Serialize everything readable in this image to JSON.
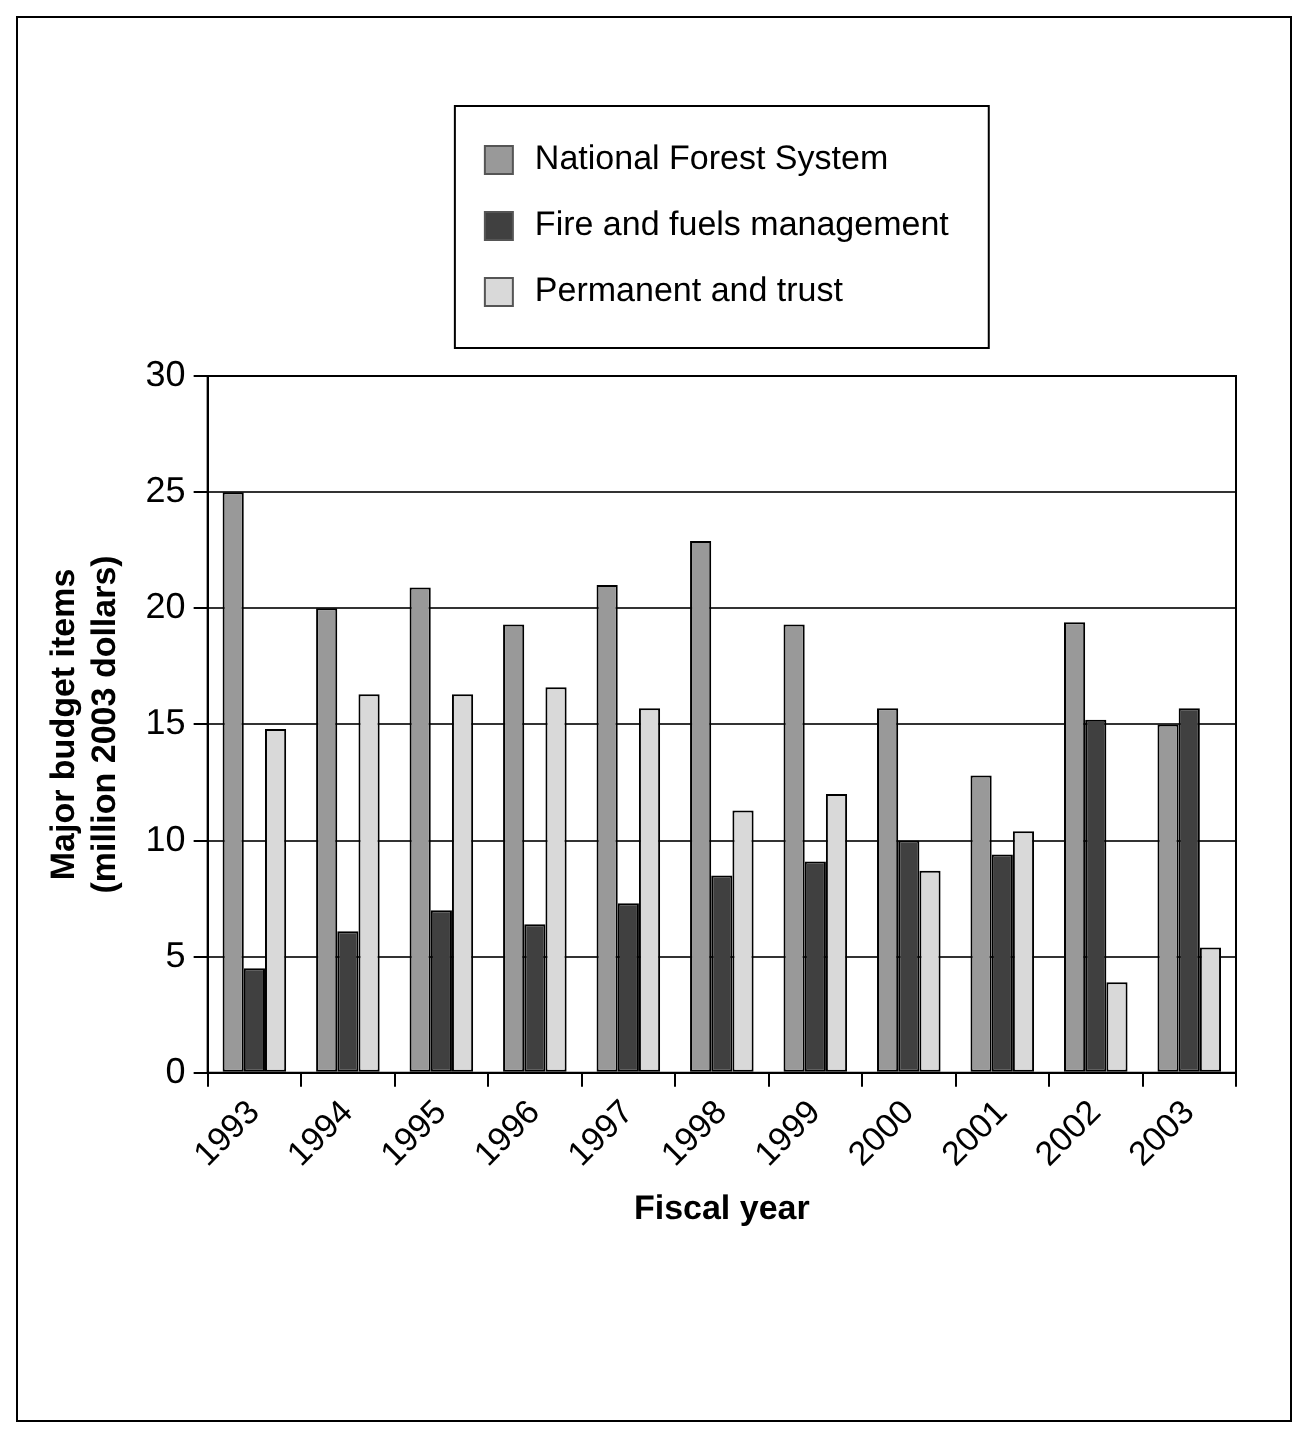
{
  "chart_data": {
    "type": "bar",
    "xlabel": "Fiscal year",
    "ylabel": "Major budget items\n(million 2003 dollars)",
    "categories": [
      "1993",
      "1994",
      "1995",
      "1996",
      "1997",
      "1998",
      "1999",
      "2000",
      "2001",
      "2002",
      "2003"
    ],
    "series": [
      {
        "name": "National Forest System",
        "color": "#999999",
        "values": [
          25.0,
          20.0,
          20.9,
          19.3,
          21.0,
          22.9,
          19.3,
          15.7,
          12.8,
          19.4,
          15.0
        ]
      },
      {
        "name": "Fire and fuels management",
        "color": "#404040",
        "values": [
          4.5,
          6.1,
          7.0,
          6.4,
          7.3,
          8.5,
          9.1,
          10.0,
          9.4,
          15.2,
          15.7
        ]
      },
      {
        "name": "Permanent and trust",
        "color": "#d9d9d9",
        "values": [
          14.8,
          16.3,
          16.3,
          16.6,
          15.7,
          11.3,
          12.0,
          8.7,
          10.4,
          3.9,
          5.4
        ]
      }
    ],
    "ylim": [
      0,
      30
    ],
    "yticks": [
      0,
      5,
      10,
      15,
      20,
      25,
      30
    ],
    "grid": "y",
    "legend": "top"
  }
}
